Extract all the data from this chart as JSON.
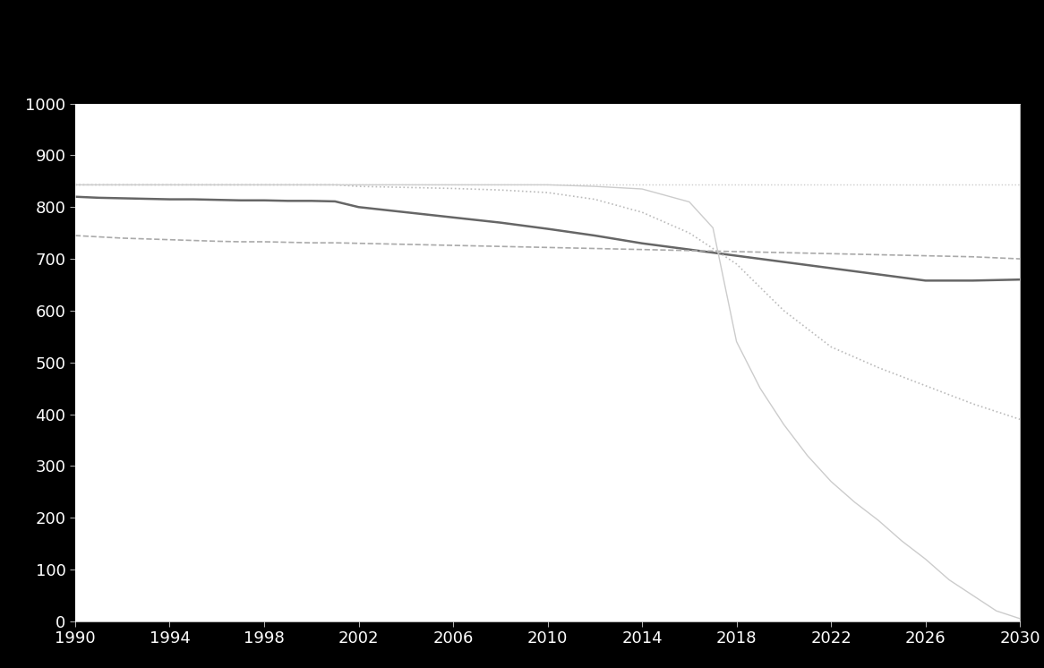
{
  "background_color": "#000000",
  "plot_bg_color": "#ffffff",
  "text_color": "#ffffff",
  "ylim": [
    0,
    1000
  ],
  "xlim": [
    1990,
    2030
  ],
  "yticks": [
    0,
    100,
    200,
    300,
    400,
    500,
    600,
    700,
    800,
    900,
    1000
  ],
  "xticks": [
    1990,
    1994,
    1998,
    2002,
    2006,
    2010,
    2014,
    2018,
    2022,
    2026,
    2030
  ],
  "lines": [
    {
      "name": "solid_dark_main",
      "color": "#666666",
      "linestyle": "solid",
      "linewidth": 1.8,
      "x": [
        1990,
        1991,
        1992,
        1993,
        1994,
        1995,
        1996,
        1997,
        1998,
        1999,
        2000,
        2001,
        2002,
        2004,
        2006,
        2008,
        2010,
        2012,
        2014,
        2016,
        2018,
        2020,
        2022,
        2024,
        2026,
        2028,
        2030
      ],
      "y": [
        820,
        818,
        817,
        816,
        815,
        815,
        814,
        813,
        813,
        812,
        812,
        811,
        800,
        790,
        780,
        770,
        758,
        745,
        730,
        718,
        706,
        694,
        682,
        670,
        658,
        658,
        660
      ]
    },
    {
      "name": "dashed_lower",
      "color": "#aaaaaa",
      "linestyle": "dashed",
      "linewidth": 1.2,
      "x": [
        1990,
        1992,
        1994,
        1996,
        1997,
        1998,
        1999,
        2000,
        2001,
        2002,
        2004,
        2006,
        2008,
        2010,
        2012,
        2014,
        2016,
        2018,
        2020,
        2022,
        2024,
        2026,
        2028,
        2030
      ],
      "y": [
        745,
        740,
        737,
        734,
        733,
        733,
        732,
        731,
        731,
        730,
        728,
        726,
        724,
        722,
        720,
        718,
        716,
        714,
        712,
        710,
        708,
        706,
        704,
        700
      ]
    },
    {
      "name": "dotted_near_top",
      "color": "#cccccc",
      "linestyle": "dotted",
      "linewidth": 1.0,
      "x": [
        1990,
        1995,
        2000,
        2002,
        2004,
        2006,
        2008,
        2010,
        2012,
        2014,
        2016,
        2018,
        2020,
        2022,
        2024,
        2026,
        2028,
        2030
      ],
      "y": [
        843,
        843,
        843,
        843,
        843,
        843,
        843,
        843,
        843,
        843,
        843,
        843,
        843,
        843,
        843,
        843,
        843,
        843
      ]
    },
    {
      "name": "dotted_mid_drop",
      "color": "#bbbbbb",
      "linestyle": "dotted",
      "linewidth": 1.2,
      "x": [
        1990,
        1994,
        1998,
        2001,
        2002,
        2004,
        2006,
        2008,
        2010,
        2012,
        2014,
        2016,
        2018,
        2019,
        2020,
        2022,
        2024,
        2026,
        2028,
        2030
      ],
      "y": [
        843,
        843,
        843,
        843,
        840,
        838,
        836,
        833,
        828,
        815,
        790,
        750,
        690,
        645,
        600,
        530,
        490,
        455,
        420,
        390
      ]
    },
    {
      "name": "solid_steep_drop",
      "color": "#cccccc",
      "linestyle": "solid",
      "linewidth": 1.0,
      "x": [
        1990,
        1995,
        2000,
        2002,
        2004,
        2006,
        2008,
        2010,
        2012,
        2014,
        2016,
        2017,
        2018,
        2019,
        2020,
        2021,
        2022,
        2023,
        2024,
        2025,
        2026,
        2027,
        2028,
        2029,
        2030
      ],
      "y": [
        843,
        843,
        843,
        843,
        843,
        843,
        843,
        843,
        840,
        835,
        810,
        760,
        540,
        450,
        380,
        320,
        270,
        230,
        195,
        155,
        120,
        80,
        50,
        20,
        5
      ]
    }
  ]
}
